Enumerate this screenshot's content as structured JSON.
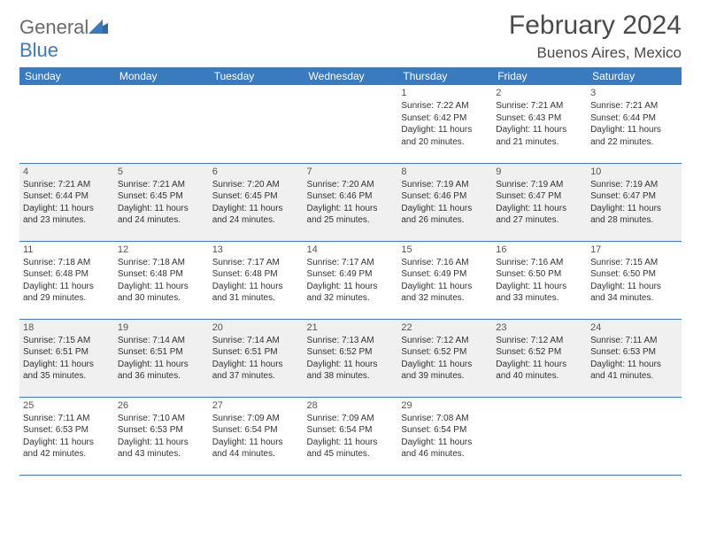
{
  "logo": {
    "part1": "General",
    "part2": "Blue"
  },
  "title": "February 2024",
  "location": "Buenos Aires, Mexico",
  "colors": {
    "header_bg": "#3a7bbf",
    "header_text": "#ffffff",
    "shade_bg": "#f0f0f0",
    "border": "#3a7bbf",
    "title_color": "#4a4a4a",
    "logo_gray": "#6a6a6a",
    "logo_blue": "#3a7bbf"
  },
  "day_names": [
    "Sunday",
    "Monday",
    "Tuesday",
    "Wednesday",
    "Thursday",
    "Friday",
    "Saturday"
  ],
  "weeks": [
    {
      "shaded": false,
      "cells": [
        {
          "day": "",
          "sunrise": "",
          "sunset": "",
          "daylight1": "",
          "daylight2": ""
        },
        {
          "day": "",
          "sunrise": "",
          "sunset": "",
          "daylight1": "",
          "daylight2": ""
        },
        {
          "day": "",
          "sunrise": "",
          "sunset": "",
          "daylight1": "",
          "daylight2": ""
        },
        {
          "day": "",
          "sunrise": "",
          "sunset": "",
          "daylight1": "",
          "daylight2": ""
        },
        {
          "day": "1",
          "sunrise": "Sunrise: 7:22 AM",
          "sunset": "Sunset: 6:42 PM",
          "daylight1": "Daylight: 11 hours",
          "daylight2": "and 20 minutes."
        },
        {
          "day": "2",
          "sunrise": "Sunrise: 7:21 AM",
          "sunset": "Sunset: 6:43 PM",
          "daylight1": "Daylight: 11 hours",
          "daylight2": "and 21 minutes."
        },
        {
          "day": "3",
          "sunrise": "Sunrise: 7:21 AM",
          "sunset": "Sunset: 6:44 PM",
          "daylight1": "Daylight: 11 hours",
          "daylight2": "and 22 minutes."
        }
      ]
    },
    {
      "shaded": true,
      "cells": [
        {
          "day": "4",
          "sunrise": "Sunrise: 7:21 AM",
          "sunset": "Sunset: 6:44 PM",
          "daylight1": "Daylight: 11 hours",
          "daylight2": "and 23 minutes."
        },
        {
          "day": "5",
          "sunrise": "Sunrise: 7:21 AM",
          "sunset": "Sunset: 6:45 PM",
          "daylight1": "Daylight: 11 hours",
          "daylight2": "and 24 minutes."
        },
        {
          "day": "6",
          "sunrise": "Sunrise: 7:20 AM",
          "sunset": "Sunset: 6:45 PM",
          "daylight1": "Daylight: 11 hours",
          "daylight2": "and 24 minutes."
        },
        {
          "day": "7",
          "sunrise": "Sunrise: 7:20 AM",
          "sunset": "Sunset: 6:46 PM",
          "daylight1": "Daylight: 11 hours",
          "daylight2": "and 25 minutes."
        },
        {
          "day": "8",
          "sunrise": "Sunrise: 7:19 AM",
          "sunset": "Sunset: 6:46 PM",
          "daylight1": "Daylight: 11 hours",
          "daylight2": "and 26 minutes."
        },
        {
          "day": "9",
          "sunrise": "Sunrise: 7:19 AM",
          "sunset": "Sunset: 6:47 PM",
          "daylight1": "Daylight: 11 hours",
          "daylight2": "and 27 minutes."
        },
        {
          "day": "10",
          "sunrise": "Sunrise: 7:19 AM",
          "sunset": "Sunset: 6:47 PM",
          "daylight1": "Daylight: 11 hours",
          "daylight2": "and 28 minutes."
        }
      ]
    },
    {
      "shaded": false,
      "cells": [
        {
          "day": "11",
          "sunrise": "Sunrise: 7:18 AM",
          "sunset": "Sunset: 6:48 PM",
          "daylight1": "Daylight: 11 hours",
          "daylight2": "and 29 minutes."
        },
        {
          "day": "12",
          "sunrise": "Sunrise: 7:18 AM",
          "sunset": "Sunset: 6:48 PM",
          "daylight1": "Daylight: 11 hours",
          "daylight2": "and 30 minutes."
        },
        {
          "day": "13",
          "sunrise": "Sunrise: 7:17 AM",
          "sunset": "Sunset: 6:48 PM",
          "daylight1": "Daylight: 11 hours",
          "daylight2": "and 31 minutes."
        },
        {
          "day": "14",
          "sunrise": "Sunrise: 7:17 AM",
          "sunset": "Sunset: 6:49 PM",
          "daylight1": "Daylight: 11 hours",
          "daylight2": "and 32 minutes."
        },
        {
          "day": "15",
          "sunrise": "Sunrise: 7:16 AM",
          "sunset": "Sunset: 6:49 PM",
          "daylight1": "Daylight: 11 hours",
          "daylight2": "and 32 minutes."
        },
        {
          "day": "16",
          "sunrise": "Sunrise: 7:16 AM",
          "sunset": "Sunset: 6:50 PM",
          "daylight1": "Daylight: 11 hours",
          "daylight2": "and 33 minutes."
        },
        {
          "day": "17",
          "sunrise": "Sunrise: 7:15 AM",
          "sunset": "Sunset: 6:50 PM",
          "daylight1": "Daylight: 11 hours",
          "daylight2": "and 34 minutes."
        }
      ]
    },
    {
      "shaded": true,
      "cells": [
        {
          "day": "18",
          "sunrise": "Sunrise: 7:15 AM",
          "sunset": "Sunset: 6:51 PM",
          "daylight1": "Daylight: 11 hours",
          "daylight2": "and 35 minutes."
        },
        {
          "day": "19",
          "sunrise": "Sunrise: 7:14 AM",
          "sunset": "Sunset: 6:51 PM",
          "daylight1": "Daylight: 11 hours",
          "daylight2": "and 36 minutes."
        },
        {
          "day": "20",
          "sunrise": "Sunrise: 7:14 AM",
          "sunset": "Sunset: 6:51 PM",
          "daylight1": "Daylight: 11 hours",
          "daylight2": "and 37 minutes."
        },
        {
          "day": "21",
          "sunrise": "Sunrise: 7:13 AM",
          "sunset": "Sunset: 6:52 PM",
          "daylight1": "Daylight: 11 hours",
          "daylight2": "and 38 minutes."
        },
        {
          "day": "22",
          "sunrise": "Sunrise: 7:12 AM",
          "sunset": "Sunset: 6:52 PM",
          "daylight1": "Daylight: 11 hours",
          "daylight2": "and 39 minutes."
        },
        {
          "day": "23",
          "sunrise": "Sunrise: 7:12 AM",
          "sunset": "Sunset: 6:52 PM",
          "daylight1": "Daylight: 11 hours",
          "daylight2": "and 40 minutes."
        },
        {
          "day": "24",
          "sunrise": "Sunrise: 7:11 AM",
          "sunset": "Sunset: 6:53 PM",
          "daylight1": "Daylight: 11 hours",
          "daylight2": "and 41 minutes."
        }
      ]
    },
    {
      "shaded": false,
      "cells": [
        {
          "day": "25",
          "sunrise": "Sunrise: 7:11 AM",
          "sunset": "Sunset: 6:53 PM",
          "daylight1": "Daylight: 11 hours",
          "daylight2": "and 42 minutes."
        },
        {
          "day": "26",
          "sunrise": "Sunrise: 7:10 AM",
          "sunset": "Sunset: 6:53 PM",
          "daylight1": "Daylight: 11 hours",
          "daylight2": "and 43 minutes."
        },
        {
          "day": "27",
          "sunrise": "Sunrise: 7:09 AM",
          "sunset": "Sunset: 6:54 PM",
          "daylight1": "Daylight: 11 hours",
          "daylight2": "and 44 minutes."
        },
        {
          "day": "28",
          "sunrise": "Sunrise: 7:09 AM",
          "sunset": "Sunset: 6:54 PM",
          "daylight1": "Daylight: 11 hours",
          "daylight2": "and 45 minutes."
        },
        {
          "day": "29",
          "sunrise": "Sunrise: 7:08 AM",
          "sunset": "Sunset: 6:54 PM",
          "daylight1": "Daylight: 11 hours",
          "daylight2": "and 46 minutes."
        },
        {
          "day": "",
          "sunrise": "",
          "sunset": "",
          "daylight1": "",
          "daylight2": ""
        },
        {
          "day": "",
          "sunrise": "",
          "sunset": "",
          "daylight1": "",
          "daylight2": ""
        }
      ]
    }
  ]
}
